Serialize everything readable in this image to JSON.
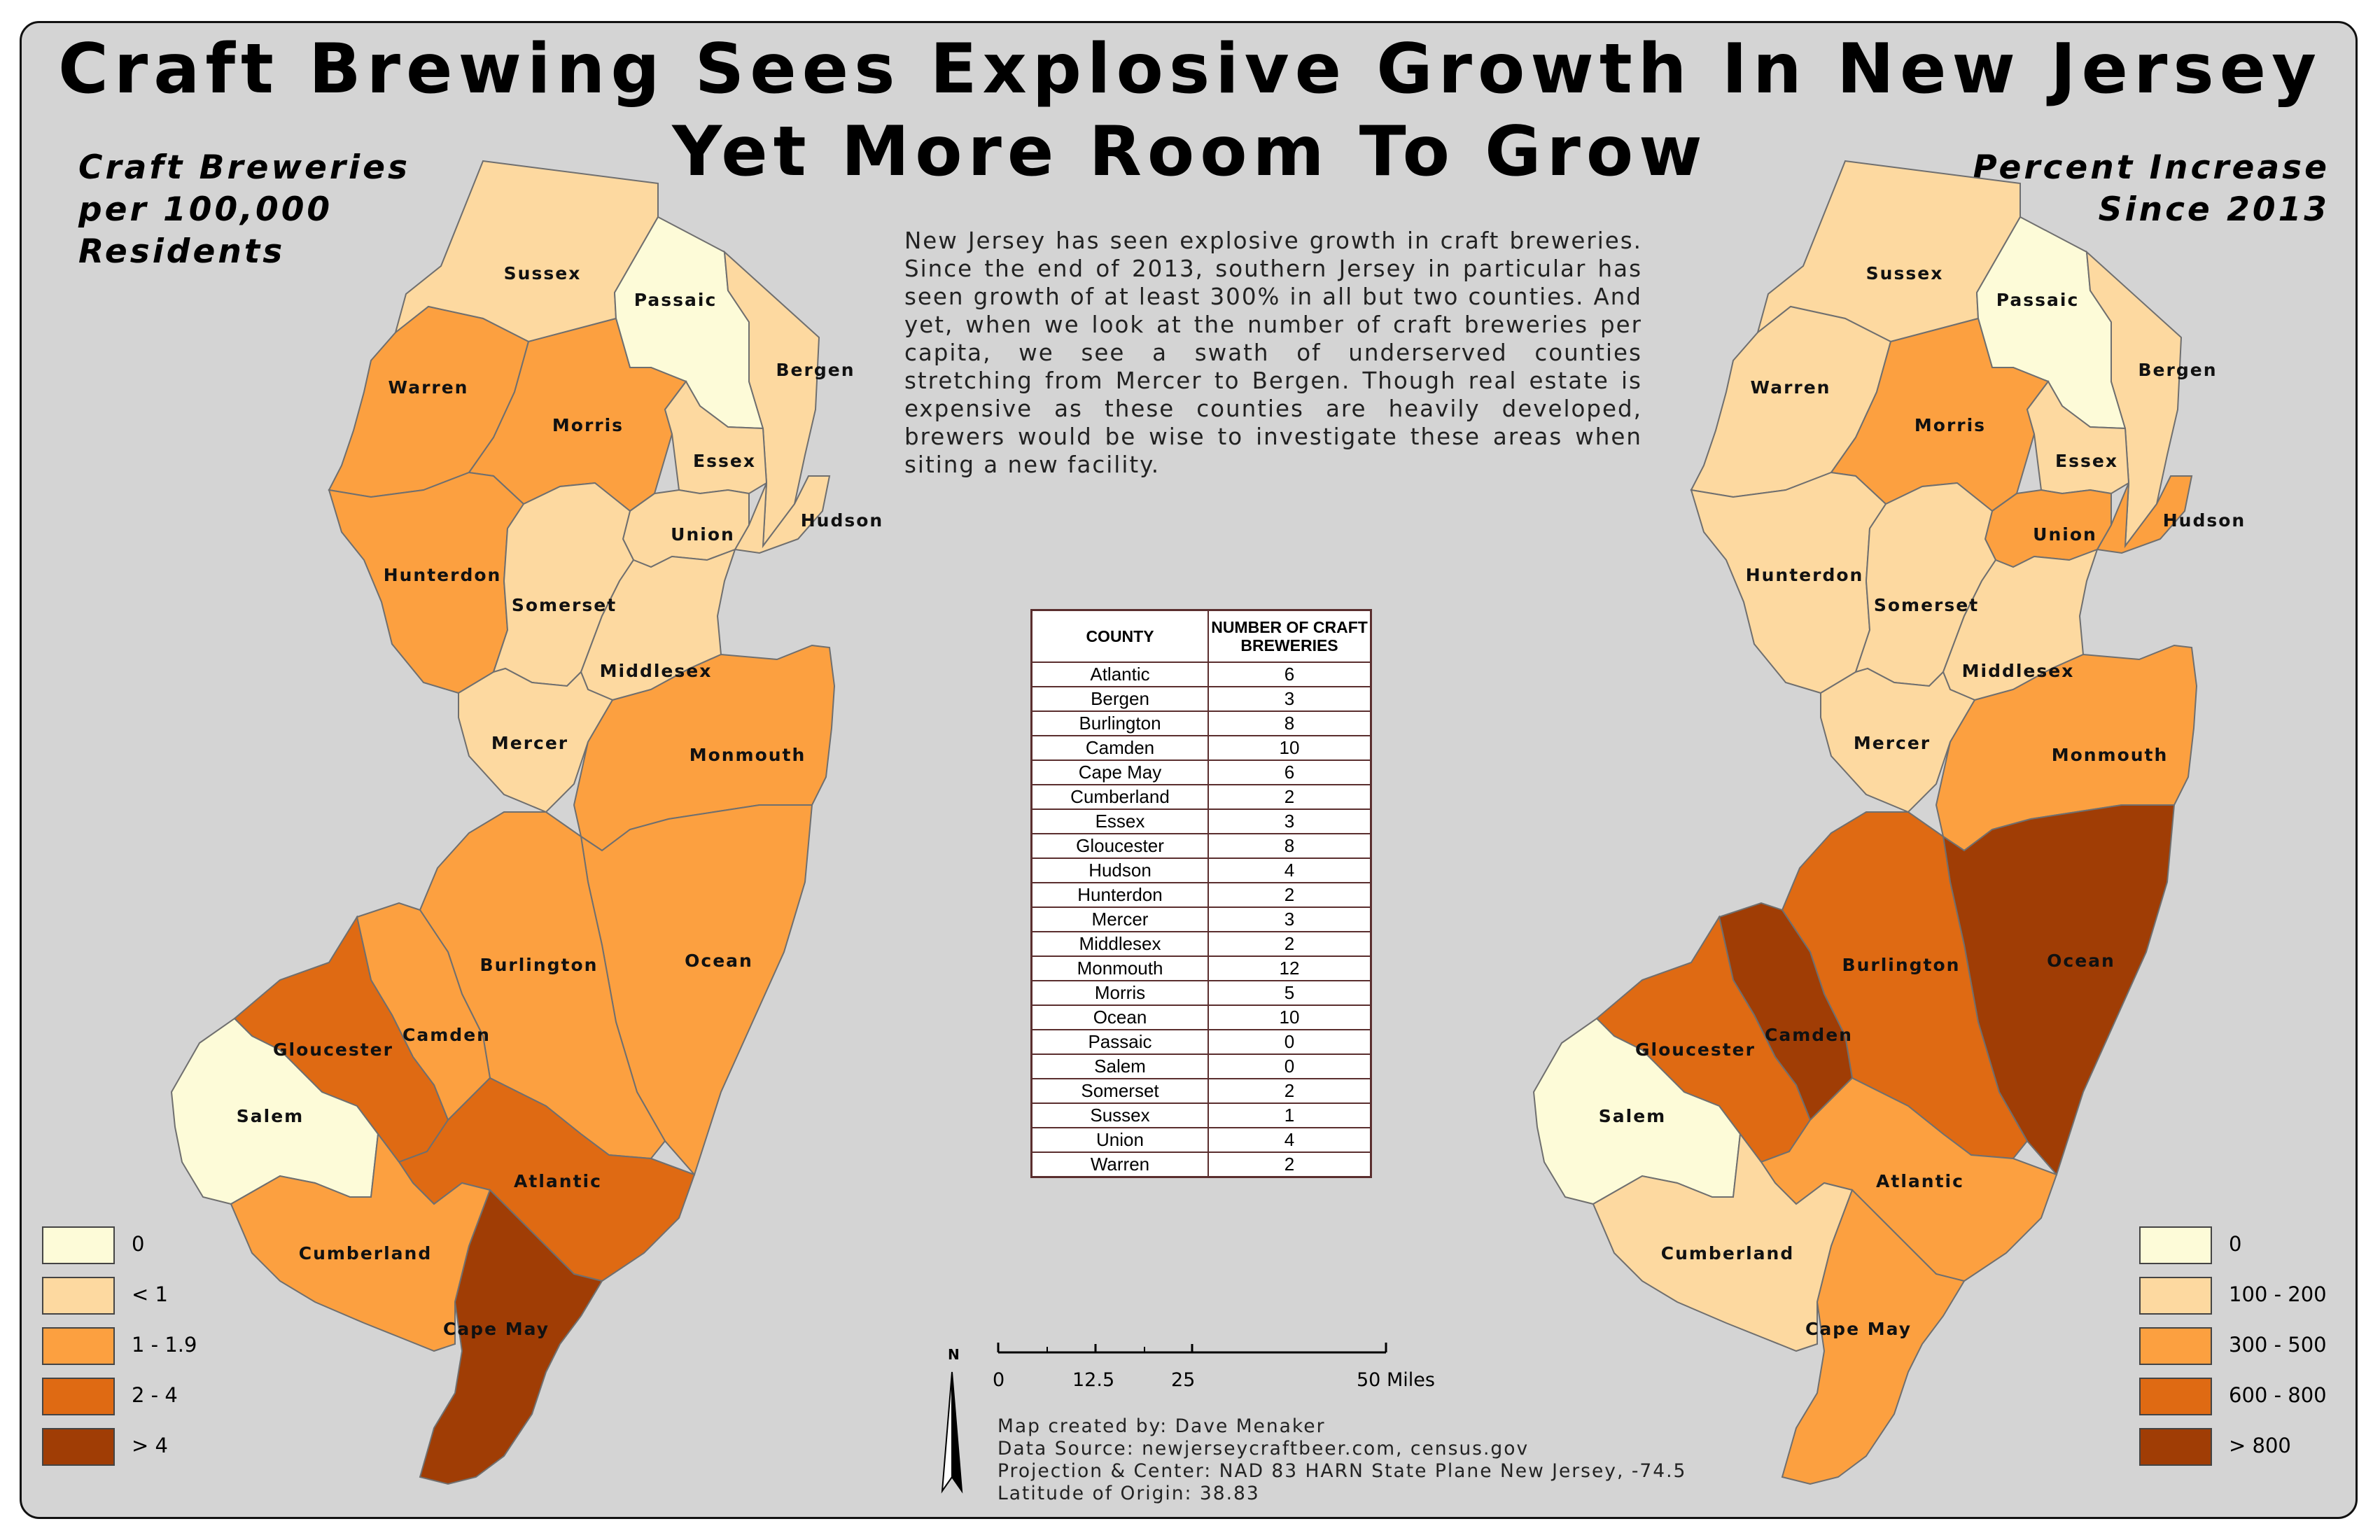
{
  "title": {
    "line1": "Craft Brewing Sees Explosive Growth In New Jersey",
    "line2": "Yet More Room To Grow"
  },
  "left_map": {
    "title": [
      "Craft Breweries",
      "per 100,000",
      "Residents"
    ],
    "legend": [
      {
        "label": "0",
        "color": "#fdfbd8"
      },
      {
        "label": "< 1",
        "color": "#fdd9a0"
      },
      {
        "label": "1 - 1.9",
        "color": "#fca040"
      },
      {
        "label": "2 - 4",
        "color": "#df6a13"
      },
      {
        "label": "> 4",
        "color": "#a03d05"
      }
    ]
  },
  "right_map": {
    "title": [
      "Percent Increase",
      "Since 2013"
    ],
    "legend": [
      {
        "label": "0",
        "color": "#fdfbd8"
      },
      {
        "label": "100 - 200",
        "color": "#fdd9a0"
      },
      {
        "label": "300 - 500",
        "color": "#fca040"
      },
      {
        "label": "600 - 800",
        "color": "#df6a13"
      },
      {
        "label": "> 800",
        "color": "#a03d05"
      }
    ]
  },
  "intro": "New Jersey has seen explosive growth in craft breweries. Since the end of 2013, southern Jersey in particular has seen growth of at least 300% in all but two counties. And yet, when we look at the number of craft breweries per capita, we see a swath of underserved counties stretching from Mercer to Bergen. Though real estate is expensive as these counties are heavily developed, brewers would be wise to investigate these areas when siting a new facility.",
  "counties": [
    {
      "name": "Sussex",
      "per_capita_class": 1,
      "increase_class": 1
    },
    {
      "name": "Passaic",
      "per_capita_class": 0,
      "increase_class": 0
    },
    {
      "name": "Bergen",
      "per_capita_class": 1,
      "increase_class": 1
    },
    {
      "name": "Warren",
      "per_capita_class": 2,
      "increase_class": 1
    },
    {
      "name": "Morris",
      "per_capita_class": 2,
      "increase_class": 2
    },
    {
      "name": "Essex",
      "per_capita_class": 1,
      "increase_class": 1
    },
    {
      "name": "Hudson",
      "per_capita_class": 1,
      "increase_class": 2
    },
    {
      "name": "Union",
      "per_capita_class": 1,
      "increase_class": 2
    },
    {
      "name": "Hunterdon",
      "per_capita_class": 2,
      "increase_class": 1
    },
    {
      "name": "Somerset",
      "per_capita_class": 1,
      "increase_class": 1
    },
    {
      "name": "Middlesex",
      "per_capita_class": 1,
      "increase_class": 1
    },
    {
      "name": "Mercer",
      "per_capita_class": 1,
      "increase_class": 1
    },
    {
      "name": "Monmouth",
      "per_capita_class": 2,
      "increase_class": 2
    },
    {
      "name": "Ocean",
      "per_capita_class": 2,
      "increase_class": 4
    },
    {
      "name": "Burlington",
      "per_capita_class": 2,
      "increase_class": 3
    },
    {
      "name": "Camden",
      "per_capita_class": 2,
      "increase_class": 4
    },
    {
      "name": "Gloucester",
      "per_capita_class": 3,
      "increase_class": 3
    },
    {
      "name": "Salem",
      "per_capita_class": 0,
      "increase_class": 0
    },
    {
      "name": "Atlantic",
      "per_capita_class": 3,
      "increase_class": 2
    },
    {
      "name": "Cumberland",
      "per_capita_class": 2,
      "increase_class": 1
    },
    {
      "name": "Cape May",
      "per_capita_class": 4,
      "increase_class": 2
    }
  ],
  "table": {
    "headers": [
      "COUNTY",
      "NUMBER OF CRAFT BREWERIES"
    ],
    "rows": [
      [
        "Atlantic",
        "6"
      ],
      [
        "Bergen",
        "3"
      ],
      [
        "Burlington",
        "8"
      ],
      [
        "Camden",
        "10"
      ],
      [
        "Cape May",
        "6"
      ],
      [
        "Cumberland",
        "2"
      ],
      [
        "Essex",
        "3"
      ],
      [
        "Gloucester",
        "8"
      ],
      [
        "Hudson",
        "4"
      ],
      [
        "Hunterdon",
        "2"
      ],
      [
        "Mercer",
        "3"
      ],
      [
        "Middlesex",
        "2"
      ],
      [
        "Monmouth",
        "12"
      ],
      [
        "Morris",
        "5"
      ],
      [
        "Ocean",
        "10"
      ],
      [
        "Passaic",
        "0"
      ],
      [
        "Salem",
        "0"
      ],
      [
        "Somerset",
        "2"
      ],
      [
        "Sussex",
        "1"
      ],
      [
        "Union",
        "4"
      ],
      [
        "Warren",
        "2"
      ]
    ]
  },
  "north_label": "N",
  "scale": {
    "ticks": [
      "0",
      "12.5",
      "25",
      "50 Miles"
    ]
  },
  "credits": [
    "Map created by: Dave Menaker",
    "Data Source: newjerseycraftbeer.com, census.gov",
    "Projection & Center: NAD 83 HARN State Plane New Jersey, -74.5",
    "Latitude of Origin: 38.83"
  ]
}
